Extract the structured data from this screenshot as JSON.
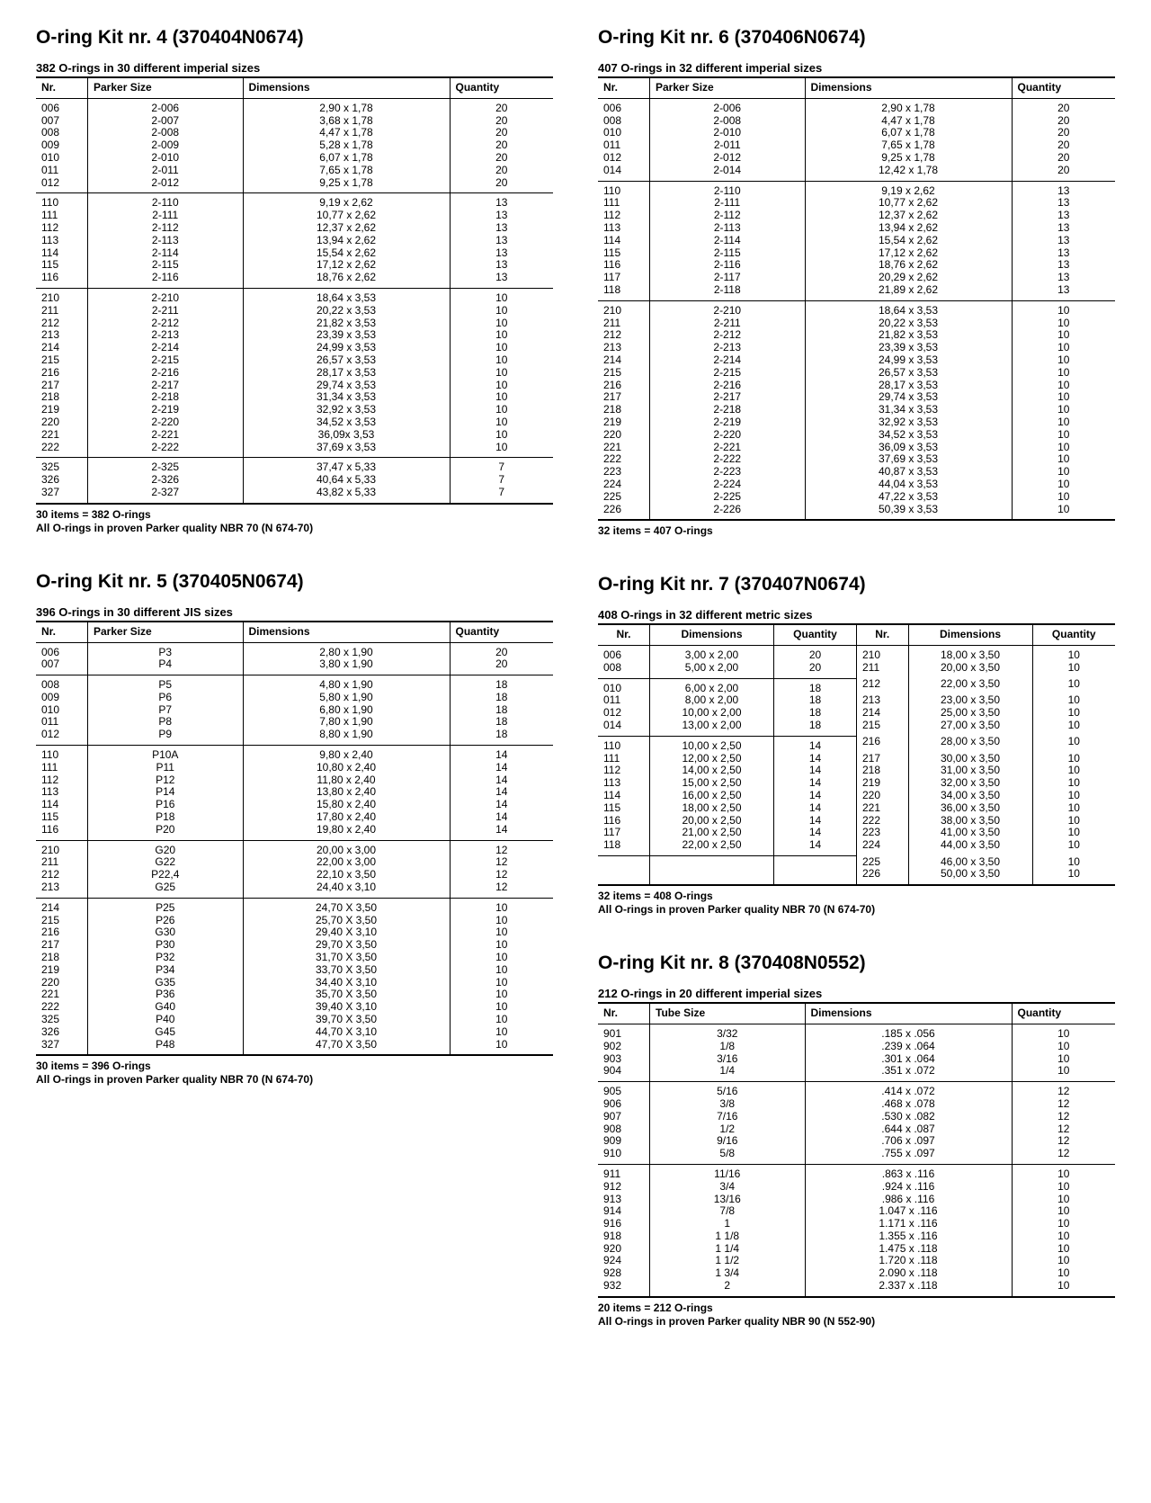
{
  "headers4": {
    "nr": "Nr.",
    "size": "Parker Size",
    "dim": "Dimensions",
    "qty": "Quantity"
  },
  "headers8": {
    "nr": "Nr.",
    "size": "Tube Size",
    "dim": "Dimensions",
    "qty": "Quantity"
  },
  "headers7": {
    "nr": "Nr.",
    "dim": "Dimensions",
    "qty": "Quantity"
  },
  "kit4": {
    "title": "O-ring Kit nr. 4 (370404N0674)",
    "sub": "382 O-rings in 30 different imperial sizes",
    "foot1": "30 items = 382 O-rings",
    "foot2": "All O-rings in proven Parker quality NBR 70 (N 674-70)",
    "groups": [
      [
        [
          "006",
          "2-006",
          "2,90 x 1,78",
          "20"
        ],
        [
          "007",
          "2-007",
          "3,68 x 1,78",
          "20"
        ],
        [
          "008",
          "2-008",
          "4,47 x 1,78",
          "20"
        ],
        [
          "009",
          "2-009",
          "5,28 x 1,78",
          "20"
        ],
        [
          "010",
          "2-010",
          "6,07 x 1,78",
          "20"
        ],
        [
          "011",
          "2-011",
          "7,65 x 1,78",
          "20"
        ],
        [
          "012",
          "2-012",
          "9,25 x 1,78",
          "20"
        ]
      ],
      [
        [
          "110",
          "2-110",
          "9,19 x 2,62",
          "13"
        ],
        [
          "111",
          "2-111",
          "10,77 x 2,62",
          "13"
        ],
        [
          "112",
          "2-112",
          "12,37 x 2,62",
          "13"
        ],
        [
          "113",
          "2-113",
          "13,94 x 2,62",
          "13"
        ],
        [
          "114",
          "2-114",
          "15,54 x 2,62",
          "13"
        ],
        [
          "115",
          "2-115",
          "17,12 x 2,62",
          "13"
        ],
        [
          "116",
          "2-116",
          "18,76 x 2,62",
          "13"
        ]
      ],
      [
        [
          "210",
          "2-210",
          "18,64 x 3,53",
          "10"
        ],
        [
          "211",
          "2-211",
          "20,22 x 3,53",
          "10"
        ],
        [
          "212",
          "2-212",
          "21,82 x 3,53",
          "10"
        ],
        [
          "213",
          "2-213",
          "23,39 x 3,53",
          "10"
        ],
        [
          "214",
          "2-214",
          "24,99 x 3,53",
          "10"
        ],
        [
          "215",
          "2-215",
          "26,57 x 3,53",
          "10"
        ],
        [
          "216",
          "2-216",
          "28,17 x 3,53",
          "10"
        ],
        [
          "217",
          "2-217",
          "29,74 x 3,53",
          "10"
        ],
        [
          "218",
          "2-218",
          "31,34 x 3,53",
          "10"
        ],
        [
          "219",
          "2-219",
          "32,92 x 3,53",
          "10"
        ],
        [
          "220",
          "2-220",
          "34,52 x 3,53",
          "10"
        ],
        [
          "221",
          "2-221",
          "36,09x 3,53",
          "10"
        ],
        [
          "222",
          "2-222",
          "37,69 x 3,53",
          "10"
        ]
      ],
      [
        [
          "325",
          "2-325",
          "37,47 x 5,33",
          "7"
        ],
        [
          "326",
          "2-326",
          "40,64 x 5,33",
          "7"
        ],
        [
          "327",
          "2-327",
          "43,82 x 5,33",
          "7"
        ]
      ]
    ]
  },
  "kit5": {
    "title": "O-ring Kit nr. 5 (370405N0674)",
    "sub": "396 O-rings in 30 different JIS sizes",
    "foot1": "30 items = 396 O-rings",
    "foot2": "All O-rings in proven Parker quality NBR 70 (N 674-70)",
    "groups": [
      [
        [
          "006",
          "P3",
          "2,80 x 1,90",
          "20"
        ],
        [
          "007",
          "P4",
          "3,80 x 1,90",
          "20"
        ]
      ],
      [
        [
          "008",
          "P5",
          "4,80 x 1,90",
          "18"
        ],
        [
          "009",
          "P6",
          "5,80 x 1,90",
          "18"
        ],
        [
          "010",
          "P7",
          "6,80 x 1,90",
          "18"
        ],
        [
          "011",
          "P8",
          "7,80 x 1,90",
          "18"
        ],
        [
          "012",
          "P9",
          "8,80 x 1,90",
          "18"
        ]
      ],
      [
        [
          "110",
          "P10A",
          "9,80 x 2,40",
          "14"
        ],
        [
          "111",
          "P11",
          "10,80 x 2,40",
          "14"
        ],
        [
          "112",
          "P12",
          "11,80 x 2,40",
          "14"
        ],
        [
          "113",
          "P14",
          "13,80 x 2,40",
          "14"
        ],
        [
          "114",
          "P16",
          "15,80 x 2,40",
          "14"
        ],
        [
          "115",
          "P18",
          "17,80 x 2,40",
          "14"
        ],
        [
          "116",
          "P20",
          "19,80 x 2,40",
          "14"
        ]
      ],
      [
        [
          "210",
          "G20",
          "20,00 x 3,00",
          "12"
        ],
        [
          "211",
          "G22",
          "22,00 x 3,00",
          "12"
        ],
        [
          "212",
          "P22,4",
          "22,10 x 3,50",
          "12"
        ],
        [
          "213",
          "G25",
          "24,40 x 3,10",
          "12"
        ]
      ],
      [
        [
          "214",
          "P25",
          "24,70 X 3,50",
          "10"
        ],
        [
          "215",
          "P26",
          "25,70 X 3,50",
          "10"
        ],
        [
          "216",
          "G30",
          "29,40 X 3,10",
          "10"
        ],
        [
          "217",
          "P30",
          "29,70 X 3,50",
          "10"
        ],
        [
          "218",
          "P32",
          "31,70 X 3,50",
          "10"
        ],
        [
          "219",
          "P34",
          "33,70 X 3,50",
          "10"
        ],
        [
          "220",
          "G35",
          "34,40 X 3,10",
          "10"
        ],
        [
          "221",
          "P36",
          "35,70 X 3,50",
          "10"
        ],
        [
          "222",
          "G40",
          "39,40 X 3,10",
          "10"
        ],
        [
          "325",
          "P40",
          "39,70 X 3,50",
          "10"
        ],
        [
          "326",
          "G45",
          "44,70 X 3,10",
          "10"
        ],
        [
          "327",
          "P48",
          "47,70 X 3,50",
          "10"
        ]
      ]
    ]
  },
  "kit6": {
    "title": "O-ring Kit nr. 6 (370406N0674)",
    "sub": "407 O-rings in 32 different imperial sizes",
    "foot1": "32 items = 407 O-rings",
    "groups": [
      [
        [
          "006",
          "2-006",
          "2,90 x 1,78",
          "20"
        ],
        [
          "008",
          "2-008",
          "4,47 x 1,78",
          "20"
        ],
        [
          "010",
          "2-010",
          "6,07 x 1,78",
          "20"
        ],
        [
          "011",
          "2-011",
          "7,65 x 1,78",
          "20"
        ],
        [
          "012",
          "2-012",
          "9,25 x 1,78",
          "20"
        ],
        [
          "014",
          "2-014",
          "12,42 x 1,78",
          "20"
        ]
      ],
      [
        [
          "110",
          "2-110",
          "9,19 x 2,62",
          "13"
        ],
        [
          "111",
          "2-111",
          "10,77 x 2,62",
          "13"
        ],
        [
          "112",
          "2-112",
          "12,37 x 2,62",
          "13"
        ],
        [
          "113",
          "2-113",
          "13,94 x 2,62",
          "13"
        ],
        [
          "114",
          "2-114",
          "15,54 x 2,62",
          "13"
        ],
        [
          "115",
          "2-115",
          "17,12 x 2,62",
          "13"
        ],
        [
          "116",
          "2-116",
          "18,76 x 2,62",
          "13"
        ],
        [
          "117",
          "2-117",
          "20,29 x 2,62",
          "13"
        ],
        [
          "118",
          "2-118",
          "21,89 x 2,62",
          "13"
        ]
      ],
      [
        [
          "210",
          "2-210",
          "18,64 x 3,53",
          "10"
        ],
        [
          "211",
          "2-211",
          "20,22 x 3,53",
          "10"
        ],
        [
          "212",
          "2-212",
          "21,82 x 3,53",
          "10"
        ],
        [
          "213",
          "2-213",
          "23,39 x 3,53",
          "10"
        ],
        [
          "214",
          "2-214",
          "24,99 x 3,53",
          "10"
        ],
        [
          "215",
          "2-215",
          "26,57 x 3,53",
          "10"
        ],
        [
          "216",
          "2-216",
          "28,17 x 3,53",
          "10"
        ],
        [
          "217",
          "2-217",
          "29,74 x 3,53",
          "10"
        ],
        [
          "218",
          "2-218",
          "31,34 x 3,53",
          "10"
        ],
        [
          "219",
          "2-219",
          "32,92 x 3,53",
          "10"
        ],
        [
          "220",
          "2-220",
          "34,52 x 3,53",
          "10"
        ],
        [
          "221",
          "2-221",
          "36,09 x 3,53",
          "10"
        ],
        [
          "222",
          "2-222",
          "37,69 x 3,53",
          "10"
        ],
        [
          "223",
          "2-223",
          "40,87 x 3,53",
          "10"
        ],
        [
          "224",
          "2-224",
          "44,04 x 3,53",
          "10"
        ],
        [
          "225",
          "2-225",
          "47,22 x 3,53",
          "10"
        ],
        [
          "226",
          "2-226",
          "50,39 x 3,53",
          "10"
        ]
      ]
    ]
  },
  "kit7": {
    "title": "O-ring Kit nr. 7 (370407N0674)",
    "sub": "408 O-rings in 32 different metric sizes",
    "foot1": "32 items = 408 O-rings",
    "foot2": "All O-rings in proven Parker quality NBR 70 (N 674-70)",
    "left_groups": [
      [
        [
          "006",
          "3,00 x 2,00",
          "20"
        ],
        [
          "008",
          "5,00 x 2,00",
          "20"
        ]
      ],
      [
        [
          "010",
          "6,00 x 2,00",
          "18"
        ],
        [
          "011",
          "8,00 x 2,00",
          "18"
        ],
        [
          "012",
          "10,00 x 2,00",
          "18"
        ],
        [
          "014",
          "13,00 x 2,00",
          "18"
        ]
      ],
      [
        [
          "110",
          "10,00 x 2,50",
          "14"
        ],
        [
          "111",
          "12,00 x 2,50",
          "14"
        ],
        [
          "112",
          "14,00 x 2,50",
          "14"
        ],
        [
          "113",
          "15,00 x 2,50",
          "14"
        ],
        [
          "114",
          "16,00 x 2,50",
          "14"
        ],
        [
          "115",
          "18,00 x 2,50",
          "14"
        ],
        [
          "116",
          "20,00 x 2,50",
          "14"
        ],
        [
          "117",
          "21,00 x 2,50",
          "14"
        ],
        [
          "118",
          "22,00 x 2,50",
          "14"
        ]
      ]
    ],
    "right_rows": [
      [
        "210",
        "18,00 x 3,50",
        "10"
      ],
      [
        "211",
        "20,00 x 3,50",
        "10"
      ],
      [
        "212",
        "22,00 x 3,50",
        "10"
      ],
      [
        "213",
        "23,00 x 3,50",
        "10"
      ],
      [
        "214",
        "25,00 x 3,50",
        "10"
      ],
      [
        "215",
        "27,00 x 3,50",
        "10"
      ],
      [
        "216",
        "28,00 x 3,50",
        "10"
      ],
      [
        "217",
        "30,00 x 3,50",
        "10"
      ],
      [
        "218",
        "31,00 x 3,50",
        "10"
      ],
      [
        "219",
        "32,00 x 3,50",
        "10"
      ],
      [
        "220",
        "34,00 x 3,50",
        "10"
      ],
      [
        "221",
        "36,00 x 3,50",
        "10"
      ],
      [
        "222",
        "38,00 x 3,50",
        "10"
      ],
      [
        "223",
        "41,00 x 3,50",
        "10"
      ],
      [
        "224",
        "44,00 x 3,50",
        "10"
      ],
      [
        "225",
        "46,00 x 3,50",
        "10"
      ],
      [
        "226",
        "50,00 x 3,50",
        "10"
      ]
    ]
  },
  "kit8": {
    "title": "O-ring Kit nr. 8 (370408N0552)",
    "sub": "212 O-rings in 20 different imperial sizes",
    "foot1": "20 items = 212 O-rings",
    "foot2": "All O-rings in proven Parker quality NBR 90 (N 552-90)",
    "groups": [
      [
        [
          "901",
          "3/32",
          ".185 x .056",
          "10"
        ],
        [
          "902",
          "1/8",
          ".239 x .064",
          "10"
        ],
        [
          "903",
          "3/16",
          ".301 x .064",
          "10"
        ],
        [
          "904",
          "1/4",
          ".351 x .072",
          "10"
        ]
      ],
      [
        [
          "905",
          "5/16",
          ".414 x .072",
          "12"
        ],
        [
          "906",
          "3/8",
          ".468 x .078",
          "12"
        ],
        [
          "907",
          "7/16",
          ".530 x .082",
          "12"
        ],
        [
          "908",
          "1/2",
          ".644 x .087",
          "12"
        ],
        [
          "909",
          "9/16",
          ".706 x .097",
          "12"
        ],
        [
          "910",
          "5/8",
          ".755 x .097",
          "12"
        ]
      ],
      [
        [
          "911",
          "11/16",
          ".863 x .116",
          "10"
        ],
        [
          "912",
          "3/4",
          ".924 x .116",
          "10"
        ],
        [
          "913",
          "13/16",
          ".986 x .116",
          "10"
        ],
        [
          "914",
          "7/8",
          "1.047 x .116",
          "10"
        ],
        [
          "916",
          "1",
          "1.171 x .116",
          "10"
        ],
        [
          "918",
          "1 1/8",
          "1.355 x .116",
          "10"
        ],
        [
          "920",
          "1 1/4",
          "1.475 x .118",
          "10"
        ],
        [
          "924",
          "1 1/2",
          "1.720 x .118",
          "10"
        ],
        [
          "928",
          "1 3/4",
          "2.090 x .118",
          "10"
        ],
        [
          "932",
          "2",
          "2.337 x .118",
          "10"
        ]
      ]
    ]
  }
}
